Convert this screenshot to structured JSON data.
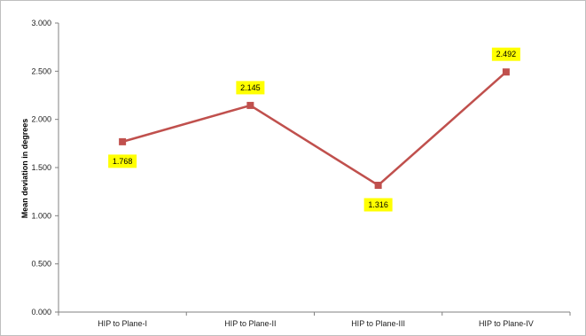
{
  "chart_data": {
    "type": "line",
    "title": "",
    "xlabel": "",
    "ylabel": "Mean deviation in degrees",
    "categories": [
      "HIP to Plane-I",
      "HIP to Plane-II",
      "HIP to Plane-III",
      "HIP to Plane-IV"
    ],
    "series": [
      {
        "values": [
          1.768,
          2.145,
          1.316,
          2.492
        ],
        "color": "#c0504d",
        "marker": "square"
      }
    ],
    "data_labels": [
      "1.768",
      "2.145",
      "1.316",
      "2.492"
    ],
    "y_ticks": [
      "0.000",
      "0.500",
      "1.000",
      "1.500",
      "2.000",
      "2.500",
      "3.000"
    ],
    "ylim": [
      0,
      3
    ],
    "grid": false,
    "legend": "none",
    "colors": {
      "line": "#c0504d",
      "label_background": "#ffff00",
      "axis": "#808080"
    }
  }
}
